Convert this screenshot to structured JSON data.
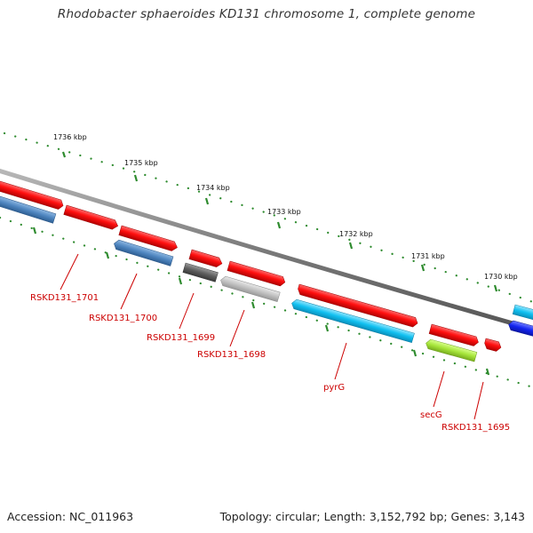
{
  "title": "Rhodobacter sphaeroides KD131 chromosome 1, complete genome",
  "footer": {
    "accession": "Accession: NC_011963",
    "summary": "Topology: circular; Length: 3,152,792 bp; Genes: 3,143"
  },
  "scale_labels": [
    "1736 kbp",
    "1735 kbp",
    "1734 kbp",
    "1733 kbp",
    "1732 kbp",
    "1731 kbp",
    "1730 kbp"
  ],
  "genes": [
    {
      "label": "RSKD131_1701"
    },
    {
      "label": "RSKD131_1700"
    },
    {
      "label": "RSKD131_1699"
    },
    {
      "label": "RSKD131_1698"
    },
    {
      "label": "pyrG"
    },
    {
      "label": "secG"
    },
    {
      "label": "RSKD131_1695"
    }
  ],
  "colors": {
    "forward_gene": "#ff1a1a",
    "backbone": "#8c8c8c",
    "tick": "#2e8b2e",
    "label_red": "#cc0000",
    "steel_blue": "#5b8fc6",
    "dark_gray": "#666666",
    "light_gray": "#c4c4c4",
    "cyan": "#1ec4f0",
    "lime": "#a8e63c",
    "blue": "#1a2cf5"
  }
}
